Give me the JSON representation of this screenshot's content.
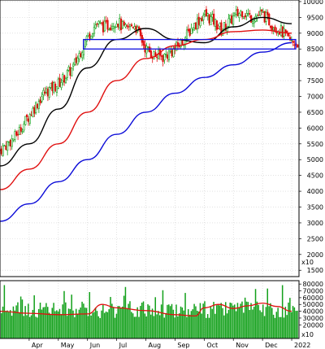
{
  "chart_data": {
    "type": "candlestick",
    "x_tick_labels": [
      "Apr",
      "May",
      "Jun",
      "Jul",
      "Aug",
      "Sep",
      "Oct",
      "Nov",
      "Dec",
      "2022"
    ],
    "price_axis": {
      "ticks": [
        1500,
        2000,
        2500,
        3000,
        3500,
        4000,
        4500,
        5000,
        5500,
        6000,
        6500,
        7000,
        7500,
        8000,
        8500,
        9000,
        9500,
        10000
      ],
      "scale_note": "x10",
      "ylim": [
        1300,
        10050
      ]
    },
    "volume_axis": {
      "ticks": [
        20000,
        30000,
        40000,
        50000,
        60000,
        70000,
        80000
      ],
      "scale_note": "x10",
      "ylim": [
        0,
        85000
      ]
    },
    "colors": {
      "up": "#12a01a",
      "down": "#e01010",
      "ma_short": "#000000",
      "ma_mid": "#e01010",
      "ma_long": "#0a0ad8",
      "volume_bar": "#12a01a",
      "volume_ma": "#e01010",
      "support_box": "#1010e0",
      "grid": "#cfcfcf"
    },
    "support_zone": {
      "low": 8500,
      "high": 8800,
      "start_month": "Jun"
    },
    "series": [
      {
        "key": "ma_short",
        "months": [
          3,
          4,
          5,
          6,
          7,
          8,
          9,
          10,
          11,
          12,
          13
        ],
        "values": [
          4800,
          5500,
          6600,
          7900,
          8800,
          9150,
          8800,
          8700,
          9200,
          9500,
          9300
        ]
      },
      {
        "key": "ma_mid",
        "months": [
          3,
          4,
          5,
          6,
          7,
          8,
          9,
          10,
          11,
          12,
          13
        ],
        "values": [
          4050,
          4700,
          5500,
          6500,
          7500,
          8200,
          8600,
          8800,
          9050,
          9100,
          9000
        ]
      },
      {
        "key": "ma_long",
        "months": [
          3,
          4,
          5,
          6,
          7,
          8,
          9,
          10,
          11,
          12,
          13
        ],
        "values": [
          3050,
          3600,
          4300,
          5000,
          5800,
          6500,
          7100,
          7600,
          8000,
          8400,
          8700
        ]
      }
    ],
    "price_path": {
      "months": [
        3.0,
        3.5,
        4.0,
        4.5,
        5.0,
        5.5,
        6.0,
        6.3,
        6.6,
        7.0,
        7.3,
        7.6,
        8.0,
        8.3,
        8.6,
        9.0,
        9.3,
        9.6,
        10.0,
        10.3,
        10.6,
        11.0,
        11.3,
        11.6,
        12.0,
        12.3,
        12.6,
        13.0
      ],
      "closes": [
        5300,
        5700,
        6400,
        7100,
        7400,
        7900,
        8900,
        9300,
        9200,
        9400,
        9100,
        9300,
        8500,
        8300,
        8250,
        8500,
        8800,
        9200,
        9600,
        9400,
        9100,
        9500,
        9700,
        9500,
        9600,
        9300,
        9100,
        8700
      ]
    },
    "volume": {
      "ma_months": [
        3,
        4,
        5,
        6,
        6.5,
        7,
        8,
        9,
        9.7,
        10,
        10.5,
        11,
        11.5,
        12,
        12.5,
        13
      ],
      "ma_values": [
        40000,
        37000,
        35000,
        36000,
        50000,
        45000,
        41000,
        35000,
        33000,
        45000,
        50000,
        44000,
        48000,
        52000,
        47000,
        40000
      ]
    }
  }
}
